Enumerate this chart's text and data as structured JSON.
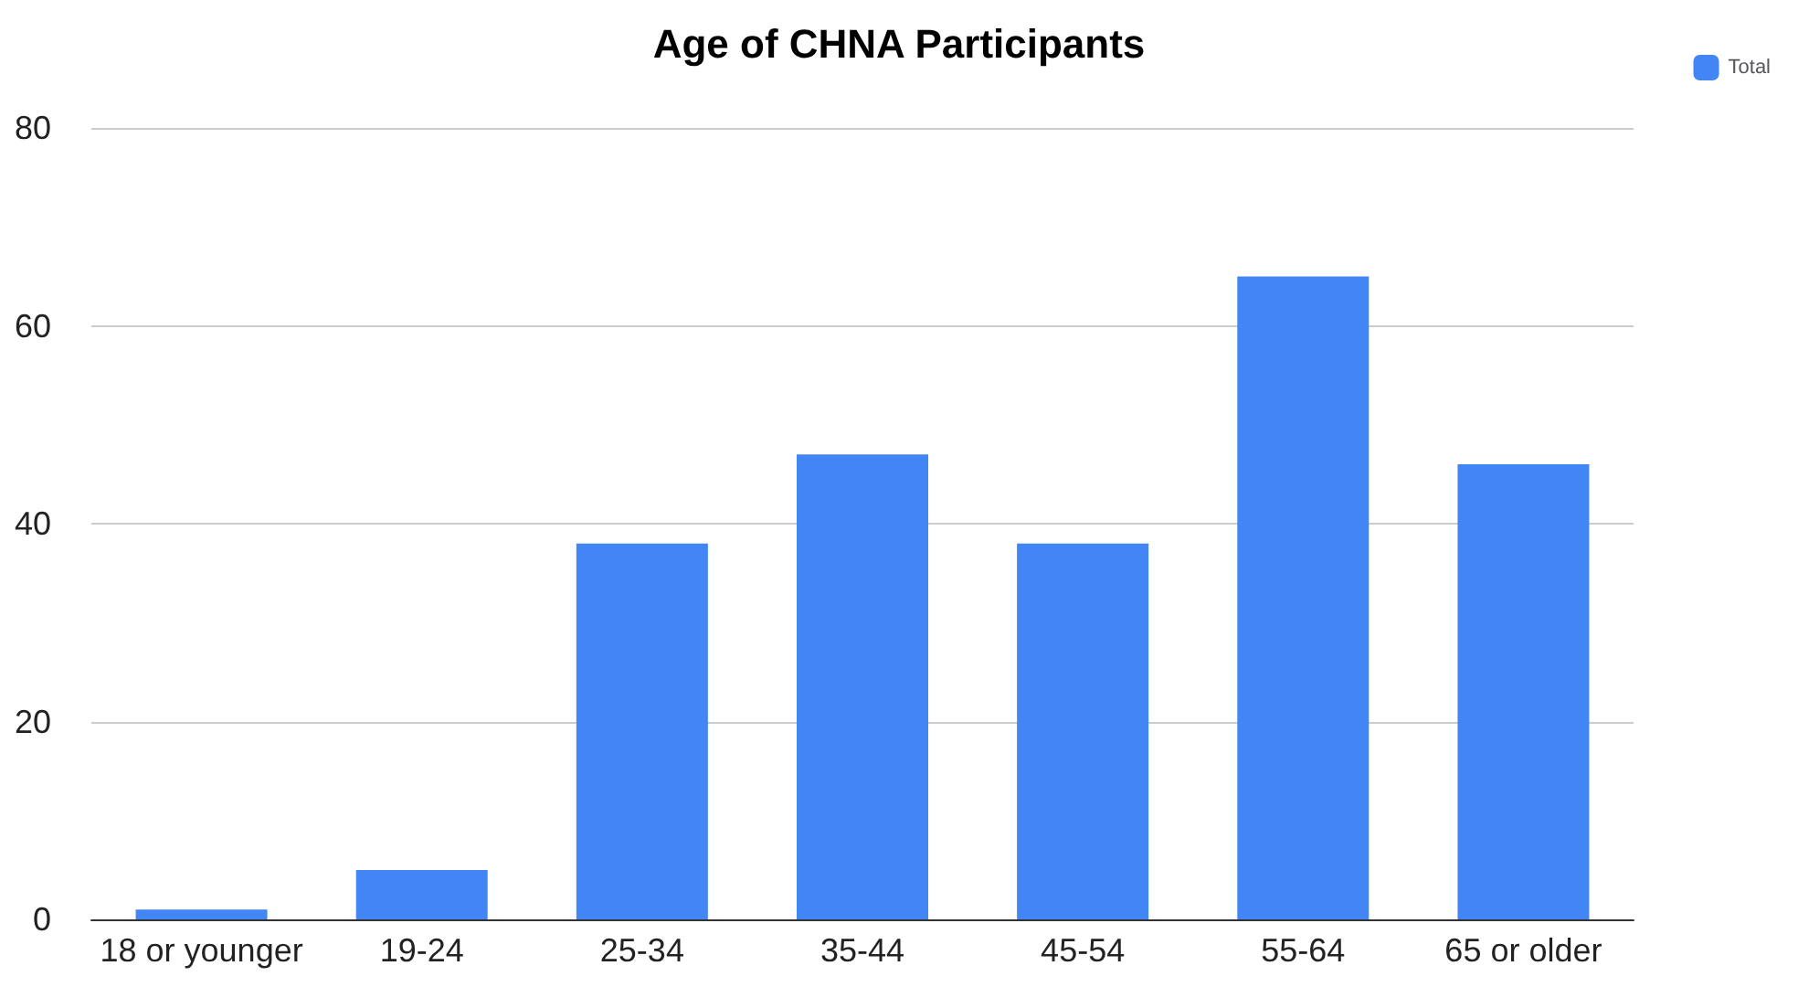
{
  "chart_data": {
    "type": "bar",
    "title": "Age of CHNA Participants",
    "categories": [
      "18 or younger",
      "19-24",
      "25-34",
      "35-44",
      "45-54",
      "55-64",
      "65 or older"
    ],
    "series": [
      {
        "name": "Total",
        "color": "#4285f4",
        "values": [
          1,
          5,
          38,
          47,
          38,
          65,
          46
        ]
      }
    ],
    "ylim": [
      0,
      80
    ],
    "yticks": [
      0,
      20,
      40,
      60,
      80
    ],
    "grid": "y",
    "legend": "top right"
  }
}
